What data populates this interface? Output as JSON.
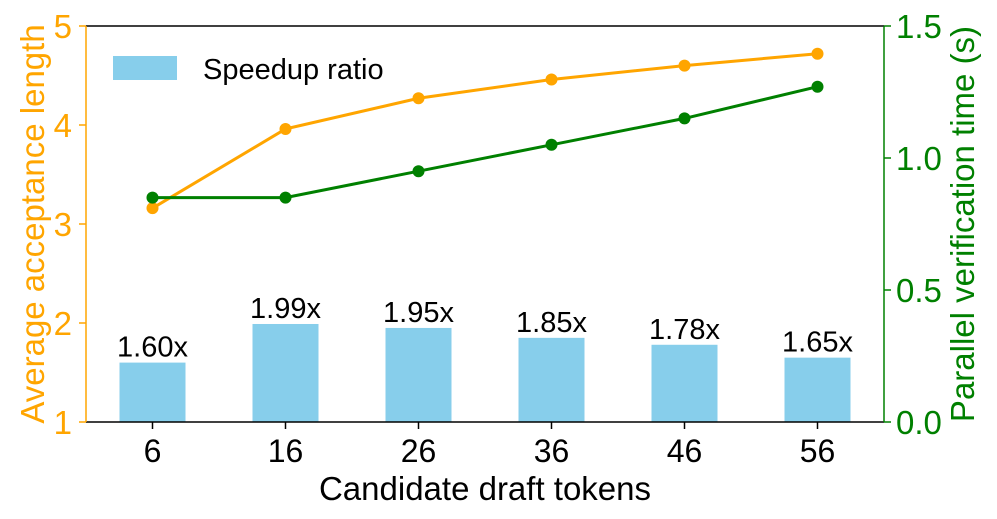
{
  "chart_data": {
    "type": "bar",
    "xlabel": "Candidate draft tokens",
    "ylabel_left": "Average acceptance length",
    "ylabel_right": "Parallel verification time (s)",
    "categories": [
      "6",
      "16",
      "26",
      "36",
      "46",
      "56"
    ],
    "ylim_left": [
      1,
      5
    ],
    "ylim_right": [
      0.0,
      1.5
    ],
    "yticks_left": [
      "1",
      "2",
      "3",
      "4",
      "5"
    ],
    "yticks_right": [
      "0.0",
      "0.5",
      "1.0",
      "1.5"
    ],
    "grid": false,
    "legend_position": "top-left",
    "bars": {
      "name": "Speedup ratio",
      "axis": "left",
      "values": [
        1.6,
        1.99,
        1.95,
        1.85,
        1.78,
        1.65
      ],
      "labels": [
        "1.60x",
        "1.99x",
        "1.95x",
        "1.85x",
        "1.78x",
        "1.65x"
      ],
      "color": "#87CEEB"
    },
    "series": [
      {
        "axis": "left",
        "color": "#FFA500",
        "values": [
          3.16,
          3.96,
          4.27,
          4.46,
          4.6,
          4.72
        ]
      },
      {
        "axis": "right",
        "color": "#008000",
        "values": [
          0.85,
          0.85,
          0.95,
          1.05,
          1.15,
          1.27
        ]
      }
    ]
  }
}
